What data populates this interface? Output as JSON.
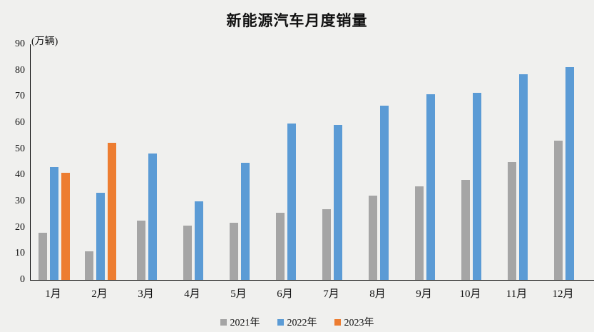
{
  "chart_data": {
    "type": "bar",
    "title": "新能源汽车月度销量",
    "ylabel": "(万辆)",
    "xlabel": "",
    "categories": [
      "1月",
      "2月",
      "3月",
      "4月",
      "5月",
      "6月",
      "7月",
      "8月",
      "9月",
      "10月",
      "11月",
      "12月"
    ],
    "series": [
      {
        "name": "2021年",
        "color": "#a5a5a5",
        "values": [
          17.9,
          11.0,
          22.6,
          20.6,
          21.7,
          25.6,
          27.1,
          32.1,
          35.7,
          38.3,
          45.0,
          53.1
        ]
      },
      {
        "name": "2022年",
        "color": "#5b9bd5",
        "values": [
          43.1,
          33.4,
          48.4,
          29.9,
          44.7,
          59.6,
          59.3,
          66.6,
          70.8,
          71.4,
          78.6,
          81.4
        ]
      },
      {
        "name": "2023年",
        "color": "#ed7d31",
        "values": [
          40.8,
          52.5,
          null,
          null,
          null,
          null,
          null,
          null,
          null,
          null,
          null,
          null
        ]
      }
    ],
    "ylim": [
      0,
      90
    ],
    "yticks": [
      0,
      10,
      20,
      30,
      40,
      50,
      60,
      70,
      80,
      90
    ],
    "grid": false,
    "legend_position": "bottom",
    "background_color": "#f0f0ee",
    "axis_color": "#000000"
  }
}
